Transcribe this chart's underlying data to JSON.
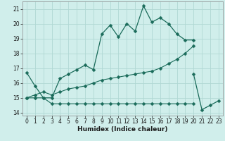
{
  "xlabel": "Humidex (Indice chaleur)",
  "background_color": "#d0eeeb",
  "grid_color": "#b0d8d4",
  "line_color": "#1a6b5a",
  "ylim": [
    13.8,
    21.5
  ],
  "xlim": [
    -0.5,
    23.5
  ],
  "yticks": [
    14,
    15,
    16,
    17,
    18,
    19,
    20,
    21
  ],
  "xticks": [
    0,
    1,
    2,
    3,
    4,
    5,
    6,
    7,
    8,
    9,
    10,
    11,
    12,
    13,
    14,
    15,
    16,
    17,
    18,
    19,
    20,
    21,
    22,
    23
  ],
  "line1_x": [
    0,
    1,
    2,
    3,
    4,
    5,
    6,
    7,
    8,
    9,
    10,
    11,
    12,
    13,
    14,
    15,
    16,
    17,
    18,
    19,
    20
  ],
  "line1_y": [
    16.7,
    15.8,
    15.0,
    15.0,
    16.3,
    16.6,
    16.9,
    17.2,
    16.9,
    19.3,
    19.9,
    19.1,
    20.0,
    19.5,
    21.2,
    20.1,
    20.4,
    20.0,
    19.3,
    18.9,
    18.9
  ],
  "line2_x": [
    20,
    21,
    22,
    23
  ],
  "line2_y": [
    16.6,
    14.2,
    14.5,
    14.8
  ],
  "line3_x": [
    0,
    1,
    2,
    3,
    4,
    5,
    6,
    7,
    8,
    9,
    10,
    11,
    12,
    13,
    14,
    15,
    16,
    17,
    18,
    19,
    20
  ],
  "line3_y": [
    15.0,
    15.0,
    15.0,
    14.6,
    14.6,
    14.6,
    14.6,
    14.6,
    14.6,
    14.6,
    14.6,
    14.6,
    14.6,
    14.6,
    14.6,
    14.6,
    14.6,
    14.6,
    14.6,
    14.6,
    14.6
  ],
  "line4_x": [
    0,
    1,
    2,
    3,
    4,
    5,
    6,
    7,
    8,
    9,
    10,
    11,
    12,
    13,
    14,
    15,
    16,
    17,
    18,
    19,
    20
  ],
  "line4_y": [
    15.0,
    15.2,
    15.4,
    15.2,
    15.4,
    15.6,
    15.7,
    15.8,
    16.0,
    16.2,
    16.3,
    16.4,
    16.5,
    16.6,
    16.7,
    16.8,
    17.0,
    17.3,
    17.6,
    18.0,
    18.5
  ]
}
